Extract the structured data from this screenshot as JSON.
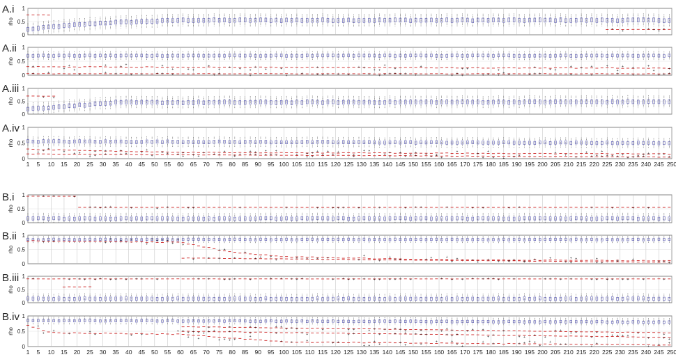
{
  "chart_data": {
    "type": "box",
    "x_ticks": [
      "1",
      "5",
      "10",
      "15",
      "20",
      "25",
      "30",
      "35",
      "40",
      "45",
      "50",
      "55",
      "60",
      "65",
      "70",
      "75",
      "80",
      "85",
      "90",
      "95",
      "100",
      "105",
      "110",
      "115",
      "120",
      "125",
      "130",
      "135",
      "140",
      "145",
      "150",
      "155",
      "160",
      "165",
      "170",
      "175",
      "180",
      "185",
      "190",
      "195",
      "200",
      "205",
      "210",
      "215",
      "220",
      "225",
      "230",
      "235",
      "240",
      "245",
      "250"
    ],
    "xlim": [
      1,
      250
    ],
    "ylim": [
      0,
      1
    ],
    "y_ticks": [
      "0",
      "0.5",
      "1"
    ],
    "ylabel": "rho",
    "grid": true,
    "colors": {
      "box": "#5a5ab4",
      "whisker": "#333333",
      "median": "#cc2222",
      "outlier": "#cc2222",
      "frame": "#666666"
    },
    "panels": [
      {
        "label": "A.i",
        "group": "A",
        "x_axis_shown": false,
        "series": [
          {
            "color": "blue",
            "median_profile": [
              [
                1,
                0.2
              ],
              [
                10,
                0.3
              ],
              [
                30,
                0.45
              ],
              [
                60,
                0.55
              ],
              [
                250,
                0.55
              ]
            ],
            "spread": 0.15
          },
          {
            "color": "red",
            "median_profile": [
              [
                1,
                0.75
              ],
              [
                10,
                0.75
              ]
            ],
            "spread": 0.05
          },
          {
            "color": "red",
            "median_profile": [
              [
                225,
                0.2
              ],
              [
                250,
                0.2
              ]
            ],
            "spread": 0.05
          }
        ]
      },
      {
        "label": "A.ii",
        "group": "A",
        "x_axis_shown": false,
        "series": [
          {
            "color": "blue",
            "median_profile": [
              [
                1,
                0.7
              ],
              [
                250,
                0.7
              ]
            ],
            "spread": 0.1
          },
          {
            "color": "red",
            "median_profile": [
              [
                1,
                0.3
              ],
              [
                250,
                0.25
              ]
            ],
            "spread": 0.1
          },
          {
            "color": "red",
            "median_profile": [
              [
                1,
                0.05
              ],
              [
                250,
                0.05
              ]
            ],
            "spread": 0.05
          }
        ]
      },
      {
        "label": "A.iii",
        "group": "A",
        "x_axis_shown": false,
        "series": [
          {
            "color": "blue",
            "median_profile": [
              [
                1,
                0.2
              ],
              [
                15,
                0.3
              ],
              [
                35,
                0.45
              ],
              [
                250,
                0.48
              ]
            ],
            "spread": 0.15
          },
          {
            "color": "red",
            "median_profile": [
              [
                1,
                0.7
              ],
              [
                12,
                0.7
              ]
            ],
            "spread": 0.05
          }
        ]
      },
      {
        "label": "A.iv",
        "group": "A",
        "x_axis_shown": true,
        "series": [
          {
            "color": "blue",
            "median_profile": [
              [
                1,
                0.55
              ],
              [
                250,
                0.5
              ]
            ],
            "spread": 0.1
          },
          {
            "color": "red",
            "median_profile": [
              [
                1,
                0.3
              ],
              [
                60,
                0.2
              ],
              [
                250,
                0.15
              ]
            ],
            "spread": 0.08
          },
          {
            "color": "red",
            "median_profile": [
              [
                1,
                0.15
              ],
              [
                250,
                0.05
              ]
            ],
            "spread": 0.05
          }
        ]
      },
      {
        "label": "B.i",
        "group": "B",
        "x_axis_shown": false,
        "series": [
          {
            "color": "blue",
            "median_profile": [
              [
                1,
                0.15
              ],
              [
                250,
                0.15
              ]
            ],
            "spread": 0.12
          },
          {
            "color": "red",
            "median_profile": [
              [
                1,
                0.95
              ],
              [
                20,
                0.95
              ]
            ],
            "spread": 0.02
          },
          {
            "color": "red",
            "median_profile": [
              [
                20,
                0.55
              ],
              [
                250,
                0.55
              ]
            ],
            "spread": 0.02
          }
        ]
      },
      {
        "label": "B.ii",
        "group": "B",
        "x_axis_shown": false,
        "series": [
          {
            "color": "blue",
            "median_profile": [
              [
                1,
                0.85
              ],
              [
                250,
                0.85
              ]
            ],
            "spread": 0.08
          },
          {
            "color": "red",
            "median_profile": [
              [
                1,
                0.8
              ],
              [
                60,
                0.75
              ],
              [
                80,
                0.4
              ],
              [
                100,
                0.25
              ],
              [
                150,
                0.15
              ],
              [
                250,
                0.1
              ]
            ],
            "spread": 0.1
          },
          {
            "color": "red",
            "median_profile": [
              [
                60,
                0.2
              ],
              [
                250,
                0.05
              ]
            ],
            "spread": 0.05
          }
        ]
      },
      {
        "label": "B.iii",
        "group": "B",
        "x_axis_shown": false,
        "series": [
          {
            "color": "blue",
            "median_profile": [
              [
                1,
                0.15
              ],
              [
                250,
                0.15
              ]
            ],
            "spread": 0.12
          },
          {
            "color": "red",
            "median_profile": [
              [
                1,
                0.9
              ],
              [
                250,
                0.9
              ]
            ],
            "spread": 0.02
          },
          {
            "color": "red",
            "median_profile": [
              [
                15,
                0.6
              ],
              [
                25,
                0.6
              ]
            ],
            "spread": 0.05
          }
        ]
      },
      {
        "label": "B.iv",
        "group": "B",
        "x_axis_shown": true,
        "series": [
          {
            "color": "blue",
            "median_profile": [
              [
                1,
                0.85
              ],
              [
                250,
                0.8
              ]
            ],
            "spread": 0.08
          },
          {
            "color": "red",
            "median_profile": [
              [
                1,
                0.7
              ],
              [
                10,
                0.45
              ],
              [
                60,
                0.4
              ],
              [
                100,
                0.15
              ],
              [
                250,
                0.05
              ]
            ],
            "spread": 0.1
          },
          {
            "color": "red",
            "median_profile": [
              [
                60,
                0.65
              ],
              [
                250,
                0.45
              ]
            ],
            "spread": 0.05
          },
          {
            "color": "red",
            "median_profile": [
              [
                60,
                0.5
              ],
              [
                250,
                0.3
              ]
            ],
            "spread": 0.05
          }
        ]
      }
    ]
  }
}
